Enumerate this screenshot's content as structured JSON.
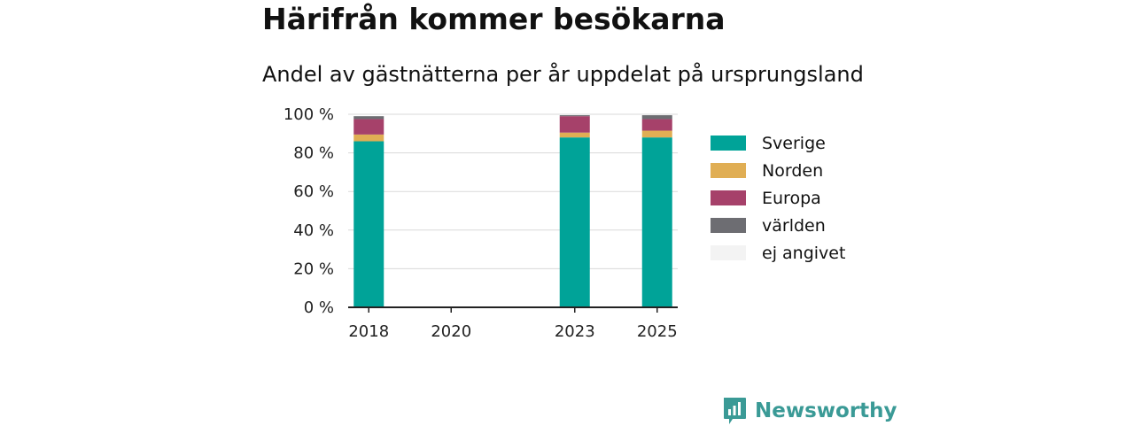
{
  "title": "Härifrån kommer besökarna",
  "subtitle": "Andel av gästnätterna per år uppdelat på ursprungsland",
  "brand": "Newsworthy",
  "chart_data": {
    "type": "bar",
    "stacked": true,
    "categories": [
      "2018",
      "2023",
      "2025"
    ],
    "x": [
      2018,
      2023,
      2025
    ],
    "x_ticks": [
      "2018",
      "2020",
      "2023",
      "2025"
    ],
    "x_tick_values": [
      2018,
      2020,
      2023,
      2025
    ],
    "xlim": [
      2017.5,
      2025.5
    ],
    "ylim": [
      0,
      100
    ],
    "y_ticks": [
      0,
      20,
      40,
      60,
      80,
      100
    ],
    "y_tick_labels": [
      "0 %",
      "20 %",
      "40 %",
      "60 %",
      "80 %",
      "100 %"
    ],
    "grid": true,
    "legend_position": "right",
    "series": [
      {
        "name": "Sverige",
        "color": "#00a398",
        "values": [
          86,
          88,
          88
        ]
      },
      {
        "name": "Norden",
        "color": "#e0ae54",
        "values": [
          3.5,
          2.5,
          3.5
        ]
      },
      {
        "name": "Europa",
        "color": "#a6416a",
        "values": [
          8,
          8.5,
          6
        ]
      },
      {
        "name": "världen",
        "color": "#6d6d72",
        "values": [
          1.5,
          0.5,
          2
        ]
      },
      {
        "name": "ej angivet",
        "color": "#f3f3f3",
        "values": [
          0,
          0,
          0
        ]
      }
    ]
  }
}
